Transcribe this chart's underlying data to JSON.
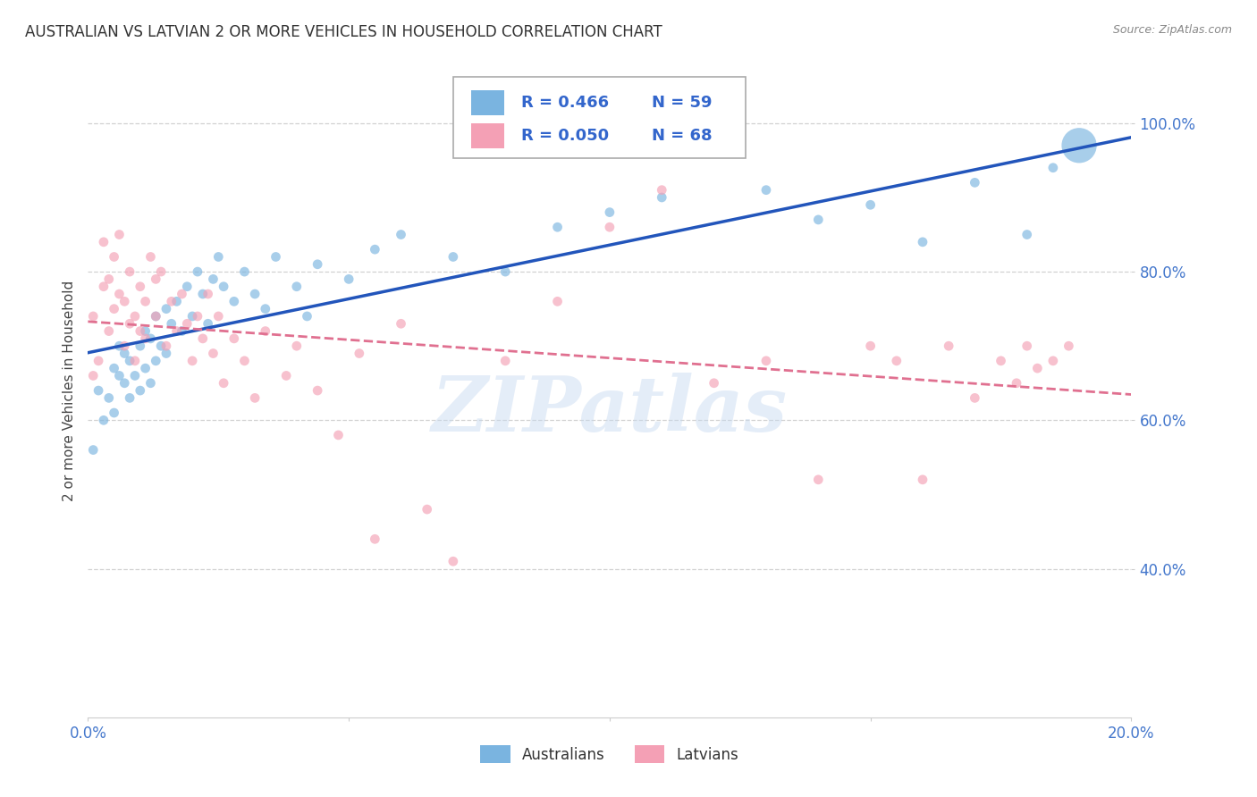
{
  "title": "AUSTRALIAN VS LATVIAN 2 OR MORE VEHICLES IN HOUSEHOLD CORRELATION CHART",
  "source": "Source: ZipAtlas.com",
  "ylabel": "2 or more Vehicles in Household",
  "xlabel": "",
  "xlim": [
    0.0,
    0.2
  ],
  "ylim": [
    0.2,
    1.08
  ],
  "ytick_vals": [
    0.4,
    0.6,
    0.8,
    1.0
  ],
  "ytick_labels": [
    "40.0%",
    "60.0%",
    "80.0%",
    "100.0%"
  ],
  "xtick_vals": [
    0.0,
    0.05,
    0.1,
    0.15,
    0.2
  ],
  "xtick_labels": [
    "0.0%",
    "",
    "",
    "",
    "20.0%"
  ],
  "legend_r_aus": "R = 0.466",
  "legend_n_aus": "N = 59",
  "legend_r_lat": "R = 0.050",
  "legend_n_lat": "N = 68",
  "watermark_text": "ZIPatlas",
  "aus_color": "#7ab4e0",
  "lat_color": "#f4a0b5",
  "aus_line_color": "#2255bb",
  "lat_line_color": "#e07090",
  "background_color": "#ffffff",
  "grid_color": "#cccccc",
  "aus_scatter_x": [
    0.001,
    0.002,
    0.003,
    0.004,
    0.005,
    0.005,
    0.006,
    0.006,
    0.007,
    0.007,
    0.008,
    0.008,
    0.009,
    0.01,
    0.01,
    0.011,
    0.011,
    0.012,
    0.012,
    0.013,
    0.013,
    0.014,
    0.015,
    0.015,
    0.016,
    0.017,
    0.018,
    0.019,
    0.02,
    0.021,
    0.022,
    0.023,
    0.024,
    0.025,
    0.026,
    0.028,
    0.03,
    0.032,
    0.034,
    0.036,
    0.04,
    0.042,
    0.044,
    0.05,
    0.055,
    0.06,
    0.07,
    0.08,
    0.09,
    0.1,
    0.11,
    0.13,
    0.14,
    0.15,
    0.16,
    0.17,
    0.18,
    0.185,
    0.19
  ],
  "aus_scatter_y": [
    0.56,
    0.64,
    0.6,
    0.63,
    0.67,
    0.61,
    0.66,
    0.7,
    0.65,
    0.69,
    0.63,
    0.68,
    0.66,
    0.64,
    0.7,
    0.67,
    0.72,
    0.65,
    0.71,
    0.68,
    0.74,
    0.7,
    0.75,
    0.69,
    0.73,
    0.76,
    0.72,
    0.78,
    0.74,
    0.8,
    0.77,
    0.73,
    0.79,
    0.82,
    0.78,
    0.76,
    0.8,
    0.77,
    0.75,
    0.82,
    0.78,
    0.74,
    0.81,
    0.79,
    0.83,
    0.85,
    0.82,
    0.8,
    0.86,
    0.88,
    0.9,
    0.91,
    0.87,
    0.89,
    0.84,
    0.92,
    0.85,
    0.94,
    0.97
  ],
  "aus_scatter_sizes": [
    60,
    60,
    60,
    60,
    60,
    60,
    60,
    60,
    60,
    60,
    60,
    60,
    60,
    60,
    60,
    60,
    60,
    60,
    60,
    60,
    60,
    60,
    60,
    60,
    60,
    60,
    60,
    60,
    60,
    60,
    60,
    60,
    60,
    60,
    60,
    60,
    60,
    60,
    60,
    60,
    60,
    60,
    60,
    60,
    60,
    60,
    60,
    60,
    60,
    60,
    60,
    60,
    60,
    60,
    60,
    60,
    60,
    60,
    800
  ],
  "lat_scatter_x": [
    0.001,
    0.001,
    0.002,
    0.003,
    0.003,
    0.004,
    0.004,
    0.005,
    0.005,
    0.006,
    0.006,
    0.007,
    0.007,
    0.008,
    0.008,
    0.009,
    0.009,
    0.01,
    0.01,
    0.011,
    0.011,
    0.012,
    0.013,
    0.013,
    0.014,
    0.015,
    0.016,
    0.017,
    0.018,
    0.019,
    0.02,
    0.021,
    0.022,
    0.023,
    0.024,
    0.025,
    0.026,
    0.028,
    0.03,
    0.032,
    0.034,
    0.038,
    0.04,
    0.044,
    0.048,
    0.052,
    0.055,
    0.06,
    0.065,
    0.07,
    0.08,
    0.09,
    0.1,
    0.11,
    0.12,
    0.13,
    0.14,
    0.15,
    0.155,
    0.16,
    0.165,
    0.17,
    0.175,
    0.178,
    0.18,
    0.182,
    0.185,
    0.188
  ],
  "lat_scatter_y": [
    0.66,
    0.74,
    0.68,
    0.84,
    0.78,
    0.72,
    0.79,
    0.75,
    0.82,
    0.77,
    0.85,
    0.7,
    0.76,
    0.73,
    0.8,
    0.68,
    0.74,
    0.72,
    0.78,
    0.71,
    0.76,
    0.82,
    0.79,
    0.74,
    0.8,
    0.7,
    0.76,
    0.72,
    0.77,
    0.73,
    0.68,
    0.74,
    0.71,
    0.77,
    0.69,
    0.74,
    0.65,
    0.71,
    0.68,
    0.63,
    0.72,
    0.66,
    0.7,
    0.64,
    0.58,
    0.69,
    0.44,
    0.73,
    0.48,
    0.41,
    0.68,
    0.76,
    0.86,
    0.91,
    0.65,
    0.68,
    0.52,
    0.7,
    0.68,
    0.52,
    0.7,
    0.63,
    0.68,
    0.65,
    0.7,
    0.67,
    0.68,
    0.7
  ],
  "lat_scatter_sizes": [
    60,
    60,
    60,
    60,
    60,
    60,
    60,
    60,
    60,
    60,
    60,
    60,
    60,
    60,
    60,
    60,
    60,
    60,
    60,
    60,
    60,
    60,
    60,
    60,
    60,
    60,
    60,
    60,
    60,
    60,
    60,
    60,
    60,
    60,
    60,
    60,
    60,
    60,
    60,
    60,
    60,
    60,
    60,
    60,
    60,
    60,
    60,
    60,
    60,
    60,
    60,
    60,
    60,
    60,
    60,
    60,
    60,
    60,
    60,
    60,
    60,
    60,
    60,
    60,
    60,
    60,
    60,
    60
  ]
}
